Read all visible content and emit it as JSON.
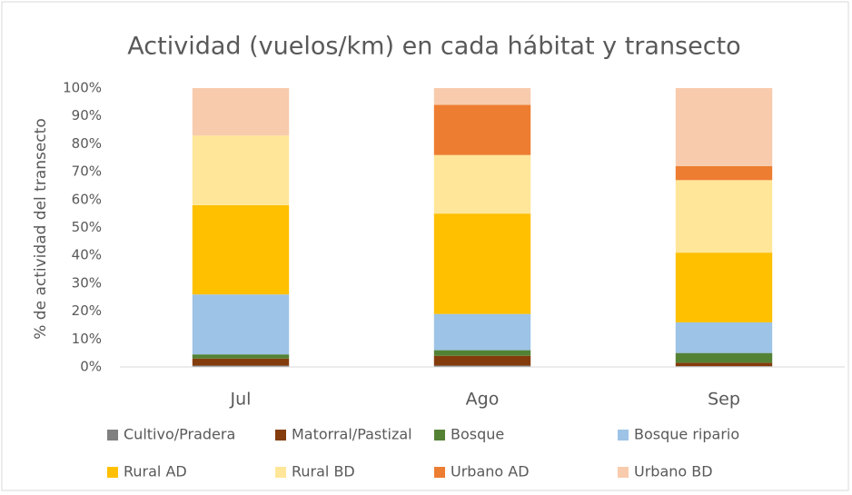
{
  "chart_data": {
    "type": "stacked_bar",
    "title": "Actividad (vuelos/km) en cada hábitat y transecto",
    "y_label": "% de actividad del transecto",
    "categories": [
      "Jul",
      "Ago",
      "Sep"
    ],
    "series": [
      {
        "name": "Cultivo/Pradera",
        "color": "#808080",
        "values": [
          0.5,
          0.5,
          0.3
        ]
      },
      {
        "name": "Matorral/Pastizal",
        "color": "#843c0c",
        "values": [
          2.5,
          3.5,
          1.2
        ]
      },
      {
        "name": "Bosque",
        "color": "#548235",
        "values": [
          1.5,
          2,
          3.5
        ]
      },
      {
        "name": "Bosque ripario",
        "color": "#9dc3e6",
        "values": [
          21.5,
          13,
          11
        ]
      },
      {
        "name": "Rural AD",
        "color": "#ffc000",
        "values": [
          32,
          36,
          25
        ]
      },
      {
        "name": "Rural BD",
        "color": "#ffe699",
        "values": [
          25,
          21,
          26
        ]
      },
      {
        "name": "Urbano AD",
        "color": "#ed7d31",
        "values": [
          0,
          18,
          5
        ]
      },
      {
        "name": "Urbano BD",
        "color": "#f8cbad",
        "values": [
          17,
          6,
          28
        ]
      }
    ],
    "ylim": [
      0,
      100
    ],
    "yticks": [
      {
        "value": 0,
        "label": "0%"
      },
      {
        "value": 10,
        "label": "10%"
      },
      {
        "value": 20,
        "label": "20%"
      },
      {
        "value": 30,
        "label": "30%"
      },
      {
        "value": 40,
        "label": "40%"
      },
      {
        "value": 50,
        "label": "50%"
      },
      {
        "value": 60,
        "label": "60%"
      },
      {
        "value": 70,
        "label": "70%"
      },
      {
        "value": 80,
        "label": "80%"
      },
      {
        "value": 90,
        "label": "90%"
      },
      {
        "value": 100,
        "label": "100%"
      }
    ],
    "grid": false
  }
}
